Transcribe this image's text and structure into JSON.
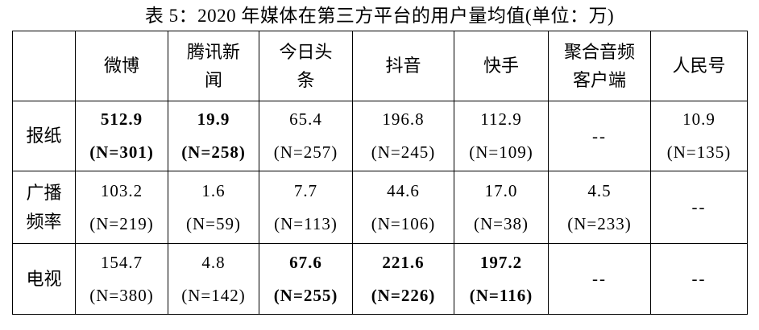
{
  "title": "表 5：2020 年媒体在第三方平台的用户量均值(单位：万)",
  "table": {
    "column_headers": [
      "",
      "微博",
      "腾讯新\n闻",
      "今日头\n条",
      "抖音",
      "快手",
      "聚合音频\n客户端",
      "人民号"
    ],
    "rows": [
      {
        "label": "报纸",
        "cells": [
          {
            "value": "512.9",
            "n": "(N=301)",
            "bold": true
          },
          {
            "value": "19.9",
            "n": "(N=258)",
            "bold": true
          },
          {
            "value": "65.4",
            "n": "(N=257)",
            "bold": false
          },
          {
            "value": "196.8",
            "n": "(N=245)",
            "bold": false
          },
          {
            "value": "112.9",
            "n": "(N=109)",
            "bold": false
          },
          {
            "value": "--",
            "bold": false
          },
          {
            "value": "10.9",
            "n": "(N=135)",
            "bold": false
          }
        ]
      },
      {
        "label": "广播\n频率",
        "cells": [
          {
            "value": "103.2",
            "n": "(N=219)",
            "bold": false
          },
          {
            "value": "1.6",
            "n": "(N=59)",
            "bold": false
          },
          {
            "value": "7.7",
            "n": "(N=113)",
            "bold": false
          },
          {
            "value": "44.6",
            "n": "(N=106)",
            "bold": false
          },
          {
            "value": "17.0",
            "n": "(N=38)",
            "bold": false
          },
          {
            "value": "4.5",
            "n": "(N=233)",
            "bold": false
          },
          {
            "value": "--",
            "bold": false
          }
        ]
      },
      {
        "label": "电视",
        "cells": [
          {
            "value": "154.7",
            "n": "(N=380)",
            "bold": false
          },
          {
            "value": "4.8",
            "n": "(N=142)",
            "bold": false
          },
          {
            "value": "67.6",
            "n": "(N=255)",
            "bold": true
          },
          {
            "value": "221.6",
            "n": "(N=226)",
            "bold": true
          },
          {
            "value": "197.2",
            "n": "(N=116)",
            "bold": true
          },
          {
            "value": "--",
            "bold": false
          },
          {
            "value": "--",
            "bold": false
          }
        ]
      }
    ]
  }
}
